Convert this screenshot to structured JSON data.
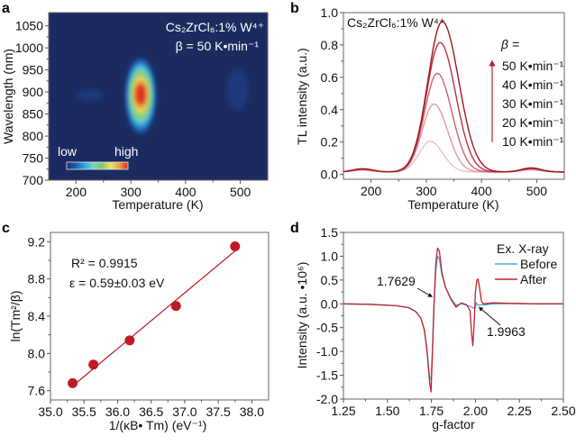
{
  "chart_data": [
    {
      "id": "a",
      "type": "heatmap",
      "panel_label": "a",
      "xlabel": "Temperature (K)",
      "ylabel": "Wavelength (nm)",
      "xlim": [
        150,
        550
      ],
      "ylim": [
        700,
        1080
      ],
      "xticks": [
        "200",
        "300",
        "400",
        "500"
      ],
      "xtick_values": [
        200,
        300,
        400,
        500
      ],
      "yticks": [
        "700",
        "750",
        "800",
        "850",
        "900",
        "950",
        "1000",
        "1050"
      ],
      "ytick_values": [
        700,
        750,
        800,
        850,
        900,
        950,
        1000,
        1050
      ],
      "annotation_line1": "Cs₂ZrCl₆:1% W⁴⁺",
      "annotation_line2": "β = 50 K•min⁻¹",
      "colorbar_low": "low",
      "colorbar_high": "high",
      "colormap": [
        "#1e2f6e",
        "#1f5bb5",
        "#2aa3d8",
        "#7fd3c8",
        "#7ec46a",
        "#e8e36a",
        "#f0a040",
        "#d42a1e"
      ],
      "background_color": "#1c2b5f",
      "hotspots": [
        {
          "temperature": 318,
          "wavelength": 895,
          "intensity": 1.0,
          "sigma_t": 22,
          "sigma_w": 75
        },
        {
          "temperature": 495,
          "wavelength": 905,
          "intensity": 0.03,
          "sigma_t": 20,
          "sigma_w": 45
        },
        {
          "temperature": 225,
          "wavelength": 893,
          "intensity": 0.04,
          "sigma_t": 25,
          "sigma_w": 12
        }
      ]
    },
    {
      "id": "b",
      "type": "line",
      "panel_label": "b",
      "xlabel": "Temperature (K)",
      "ylabel": "TL intensity (a.u.)",
      "xlim": [
        150,
        550
      ],
      "ylim": [
        -0.03,
        1.0
      ],
      "xticks": [
        "200",
        "300",
        "400",
        "500"
      ],
      "xtick_values": [
        200,
        300,
        400,
        500
      ],
      "yticks": [
        "0.0",
        "0.2",
        "0.4",
        "0.6",
        "0.8",
        "1.0"
      ],
      "ytick_values": [
        0.0,
        0.2,
        0.4,
        0.6,
        0.8,
        1.0
      ],
      "annotation": "Cs₂ZrCl₆:1% W⁴⁺",
      "legend_title": "β =",
      "legend_placement": "right",
      "series": [
        {
          "name": "10 K•min⁻¹",
          "peak_T": 307,
          "peak_I": 0.19,
          "color": "#f0c0c4"
        },
        {
          "name": "20 K•min⁻¹",
          "peak_T": 314,
          "peak_I": 0.42,
          "color": "#e39aa2"
        },
        {
          "name": "30 K•min⁻¹",
          "peak_T": 320,
          "peak_I": 0.61,
          "color": "#cc6470"
        },
        {
          "name": "40 K•min⁻¹",
          "peak_T": 325,
          "peak_I": 0.8,
          "color": "#b73443"
        },
        {
          "name": "50 K•min⁻¹",
          "peak_T": 329,
          "peak_I": 0.93,
          "color": "#a3151f"
        }
      ],
      "minor_peaks": [
        {
          "T": 185,
          "I": 0.035
        },
        {
          "T": 490,
          "I": 0.04
        }
      ],
      "baseline": 0.015,
      "arrow_color": "#b5222e"
    },
    {
      "id": "c",
      "type": "scatter",
      "panel_label": "c",
      "xlabel": "1/(κB• Tm) (eV⁻¹)",
      "ylabel": "ln(Tm²/β)",
      "xlim": [
        35.0,
        38.25
      ],
      "ylim": [
        7.5,
        9.3
      ],
      "xticks": [
        "35.0",
        "35.5",
        "36.0",
        "36.5",
        "37.0",
        "37.5",
        "38.0"
      ],
      "xtick_values": [
        35.0,
        35.5,
        36.0,
        36.5,
        37.0,
        37.5,
        38.0
      ],
      "yticks": [
        "7.6",
        "8.0",
        "8.4",
        "8.8",
        "9.2"
      ],
      "ytick_values": [
        7.6,
        8.0,
        8.4,
        8.8,
        9.2
      ],
      "points": [
        {
          "x": 35.33,
          "y": 7.68
        },
        {
          "x": 35.64,
          "y": 7.88
        },
        {
          "x": 36.18,
          "y": 8.14
        },
        {
          "x": 36.87,
          "y": 8.51
        },
        {
          "x": 37.75,
          "y": 9.15
        }
      ],
      "fit_line": {
        "x0": 35.33,
        "y0": 7.65,
        "x1": 37.75,
        "y1": 9.1
      },
      "r2_label": "R² = 0.9915",
      "epsilon_label": "ε = 0.59±0.03 eV",
      "color": "#c01a24"
    },
    {
      "id": "d",
      "type": "line",
      "panel_label": "d",
      "xlabel": "g-factor",
      "ylabel": "Intensity (a.u. •10⁶)",
      "xlim": [
        1.25,
        2.5
      ],
      "ylim": [
        -2.0,
        1.5
      ],
      "xticks": [
        "1.25",
        "1.50",
        "1.75",
        "2.00",
        "2.25",
        "2.50"
      ],
      "xtick_values": [
        1.25,
        1.5,
        1.75,
        2.0,
        2.25,
        2.5
      ],
      "yticks": [
        "-2.0",
        "-1.5",
        "-1.0",
        "-0.5",
        "0.0",
        "0.5",
        "1.0",
        "1.5"
      ],
      "ytick_values": [
        -2.0,
        -1.5,
        -1.0,
        -0.5,
        0.0,
        0.5,
        1.0,
        1.5
      ],
      "legend_title": "Ex. X-ray",
      "legend_placement": "top-right",
      "series": [
        {
          "name": "Before",
          "color": "#4aa8d8",
          "x": [
            1.25,
            1.4,
            1.55,
            1.62,
            1.66,
            1.69,
            1.71,
            1.725,
            1.74,
            1.748,
            1.755,
            1.765,
            1.775,
            1.785,
            1.795,
            1.81,
            1.83,
            1.86,
            1.89,
            1.92,
            1.95,
            1.975,
            1.99,
            1.998,
            2.005,
            2.015,
            2.03,
            2.06,
            2.1,
            2.2,
            2.35,
            2.5
          ],
          "y": [
            0.0,
            -0.01,
            -0.04,
            -0.08,
            -0.16,
            -0.3,
            -0.55,
            -0.95,
            -1.55,
            -1.6,
            -1.0,
            0.0,
            0.7,
            1.0,
            0.95,
            0.6,
            0.35,
            0.12,
            -0.03,
            0.0,
            -0.03,
            -0.06,
            -0.09,
            -0.1,
            0.02,
            -0.03,
            -0.02,
            -0.02,
            0.0,
            0.01,
            0.0,
            0.0
          ]
        },
        {
          "name": "After",
          "color": "#c0232e",
          "x": [
            1.25,
            1.4,
            1.55,
            1.62,
            1.66,
            1.69,
            1.71,
            1.725,
            1.74,
            1.748,
            1.755,
            1.765,
            1.775,
            1.785,
            1.795,
            1.81,
            1.83,
            1.86,
            1.89,
            1.92,
            1.95,
            1.97,
            1.978,
            1.985,
            1.992,
            2.0,
            2.008,
            2.015,
            2.025,
            2.035,
            2.045,
            2.1,
            2.2,
            2.35,
            2.5
          ],
          "y": [
            0.0,
            -0.01,
            -0.04,
            -0.08,
            -0.16,
            -0.3,
            -0.55,
            -1.0,
            -1.65,
            -1.85,
            -1.1,
            0.0,
            0.85,
            1.17,
            1.1,
            0.65,
            0.35,
            0.1,
            -0.07,
            0.02,
            -0.02,
            -0.15,
            -0.6,
            -0.88,
            -0.5,
            0.25,
            0.5,
            0.52,
            0.3,
            0.05,
            0.0,
            0.02,
            0.01,
            0.0,
            0.0
          ]
        }
      ],
      "annotations": [
        {
          "text": "1.7629",
          "x": 1.7629
        },
        {
          "text": "1.9963",
          "x": 1.9963
        }
      ]
    }
  ]
}
